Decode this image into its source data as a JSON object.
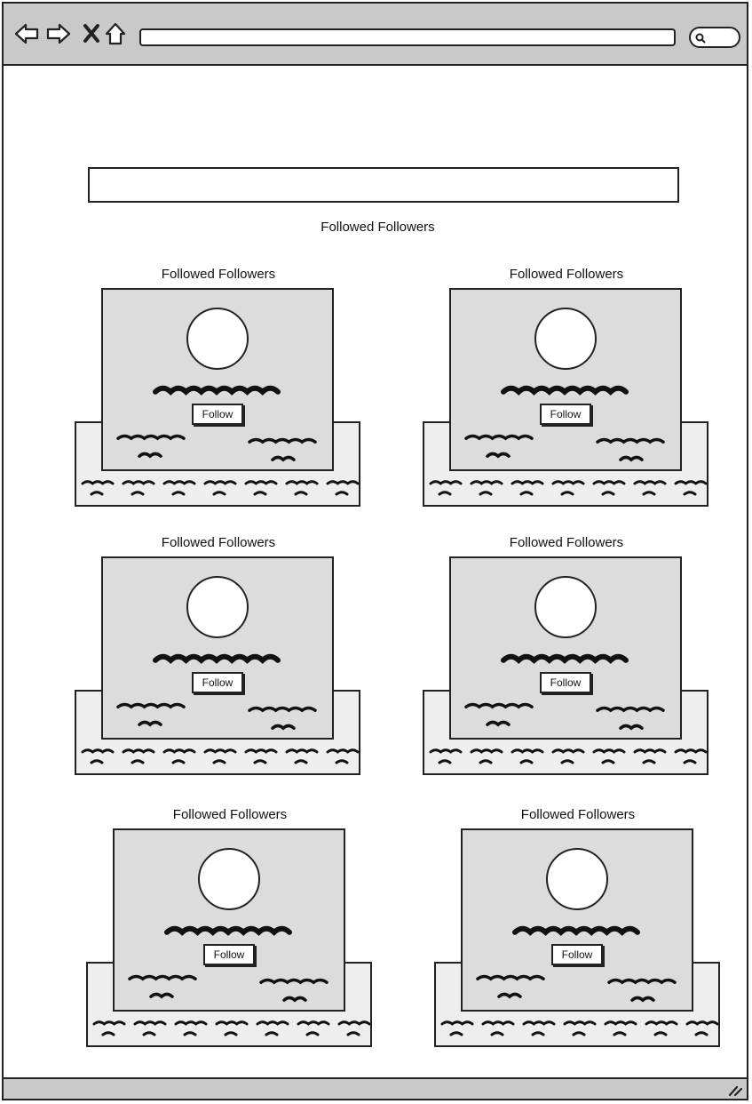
{
  "browser": {
    "url": "",
    "search_placeholder": ""
  },
  "main": {
    "search_value": "",
    "heading": "Followed Followers"
  },
  "cards": [
    {
      "title": "Followed Followers",
      "follow_label": "Follow"
    },
    {
      "title": "Followed Followers",
      "follow_label": "Follow"
    },
    {
      "title": "Followed Followers",
      "follow_label": "Follow"
    },
    {
      "title": "Followed Followers",
      "follow_label": "Follow"
    },
    {
      "title": "Followed Followers",
      "follow_label": "Follow"
    },
    {
      "title": "Followed Followers",
      "follow_label": "Follow"
    }
  ],
  "icons": {
    "back": "back-arrow-icon",
    "forward": "forward-arrow-icon",
    "stop": "close-icon",
    "home": "home-icon",
    "search": "search-icon",
    "resize": "resize-grip-icon"
  },
  "colors": {
    "chrome": "#c9c9c9",
    "card_front": "#dcdcdc",
    "card_back": "#eeeeee",
    "stroke": "#222222"
  }
}
